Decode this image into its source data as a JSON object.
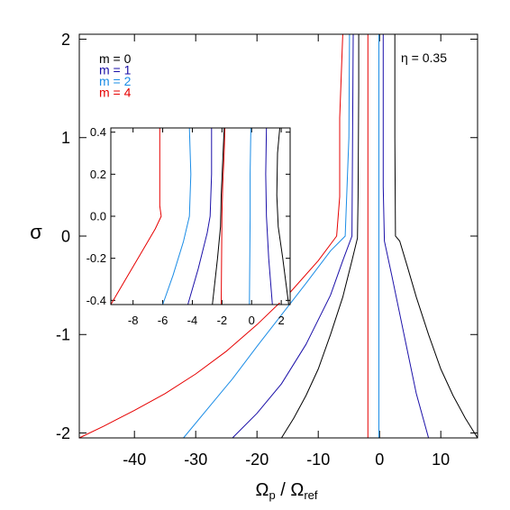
{
  "chart_data": {
    "type": "line",
    "annotation": "η = 0.35",
    "xlabel": {
      "main": "Ω",
      "sub1": "p",
      "sep": " / Ω",
      "sub2": "ref"
    },
    "ylabel": "σ",
    "xlim": [
      -49,
      16
    ],
    "ylim": [
      -2.05,
      2.05
    ],
    "xticks": [
      -40,
      -30,
      -20,
      -10,
      0,
      10
    ],
    "yticks": [
      -2,
      -1,
      0,
      1,
      2
    ],
    "legend": [
      {
        "label": "m = 0",
        "color": "#000000"
      },
      {
        "label": "m = 1",
        "color": "#1a0fa8"
      },
      {
        "label": "m = 2",
        "color": "#1a8ce6"
      },
      {
        "label": "m = 4",
        "color": "#e60000"
      }
    ],
    "series": [
      {
        "label": "m = 0",
        "color": "#000000",
        "branches": [
          {
            "x": [
              -16,
              -14,
              -12,
              -10,
              -8,
              -6,
              -4.5,
              -3.6,
              -3.5,
              -3.4,
              -3.4
            ],
            "y": [
              -2.05,
              -1.85,
              -1.62,
              -1.35,
              -1.0,
              -0.62,
              -0.25,
              -0.02,
              0.4,
              1.5,
              2.05
            ]
          },
          {
            "x": [
              16,
              14,
              12,
              10,
              8,
              6,
              4.5,
              3.3,
              2.6,
              2.5,
              2.5
            ],
            "y": [
              -2.05,
              -1.85,
              -1.62,
              -1.35,
              -1.0,
              -0.62,
              -0.3,
              -0.05,
              0.0,
              1.0,
              2.05
            ]
          }
        ]
      },
      {
        "label": "m = 1",
        "color": "#1a0fa8",
        "branches": [
          {
            "x": [
              -24,
              -20,
              -16,
              -12,
              -8,
              -6,
              -4.5,
              -4.4,
              -4.3
            ],
            "y": [
              -2.05,
              -1.8,
              -1.5,
              -1.1,
              -0.6,
              -0.25,
              0.0,
              1.0,
              2.05
            ]
          },
          {
            "x": [
              8,
              6,
              4,
              2,
              0.8,
              0.6,
              0.6
            ],
            "y": [
              -2.05,
              -1.6,
              -1.0,
              -0.4,
              -0.05,
              0.5,
              2.05
            ]
          }
        ]
      },
      {
        "label": "m = 2",
        "color": "#1a8ce6",
        "branches": [
          {
            "x": [
              -32,
              -28,
              -24,
              -20,
              -16,
              -12,
              -8,
              -5.6,
              -5.0,
              -4.9
            ],
            "y": [
              -2.05,
              -1.75,
              -1.45,
              -1.12,
              -0.8,
              -0.48,
              -0.15,
              0.0,
              1.0,
              2.05
            ]
          },
          {
            "x": [
              -0.1,
              -0.1,
              -0.1
            ],
            "y": [
              -2.05,
              0.0,
              2.05
            ]
          }
        ]
      },
      {
        "label": "m = 4",
        "color": "#e60000",
        "branches": [
          {
            "x": [
              -49,
              -45,
              -40,
              -35,
              -30,
              -25,
              -20,
              -15,
              -10,
              -7,
              -6.5,
              -6.5,
              -6.0
            ],
            "y": [
              -2.05,
              -1.93,
              -1.77,
              -1.6,
              -1.4,
              -1.17,
              -0.9,
              -0.6,
              -0.25,
              0.0,
              0.4,
              1.2,
              2.05
            ]
          },
          {
            "x": [
              -1.9,
              -1.9,
              -1.9
            ],
            "y": [
              -2.05,
              0.0,
              2.05
            ]
          }
        ]
      }
    ],
    "inset": {
      "xlim": [
        -9.5,
        2.6
      ],
      "ylim": [
        -0.42,
        0.42
      ],
      "xticks": [
        -8,
        -6,
        -4,
        -2,
        0,
        2
      ],
      "yticks": [
        -0.4,
        -0.2,
        0.0,
        0.2,
        0.4
      ],
      "ytick_labels": [
        "-0.4",
        "-0.2",
        "0.0",
        "0.2",
        "0.4"
      ],
      "series": [
        {
          "color": "#e60000",
          "branches": [
            {
              "x": [
                -9.5,
                -8.5,
                -7.5,
                -6.5,
                -6.1,
                -6.2,
                -6.2
              ],
              "y": [
                -0.42,
                -0.3,
                -0.18,
                -0.06,
                0.0,
                0.05,
                0.42
              ]
            },
            {
              "x": [
                -2.05,
                -2.0,
                -1.95,
                -1.85,
                -1.8
              ],
              "y": [
                -0.42,
                0.0,
                0.15,
                0.3,
                0.42
              ]
            }
          ]
        },
        {
          "color": "#1a8ce6",
          "branches": [
            {
              "x": [
                -6.0,
                -5.3,
                -4.6,
                -4.2,
                -4.1,
                -4.2
              ],
              "y": [
                -0.42,
                -0.28,
                -0.12,
                0.0,
                0.2,
                0.42
              ]
            },
            {
              "x": [
                -0.15,
                -0.1,
                -0.1,
                -0.05
              ],
              "y": [
                -0.42,
                0.0,
                0.2,
                0.42
              ]
            }
          ]
        },
        {
          "color": "#1a0fa8",
          "branches": [
            {
              "x": [
                -4.3,
                -3.6,
                -3.0,
                -2.8,
                -2.7,
                -2.7
              ],
              "y": [
                -0.42,
                -0.25,
                -0.08,
                0.0,
                0.2,
                0.42
              ]
            },
            {
              "x": [
                1.4,
                1.15,
                1.0,
                0.95,
                1.0
              ],
              "y": [
                -0.42,
                -0.2,
                0.0,
                0.2,
                0.42
              ]
            }
          ]
        },
        {
          "color": "#000000",
          "branches": [
            {
              "x": [
                -2.65,
                -2.3,
                -2.1,
                -2.05,
                -1.85
              ],
              "y": [
                -0.42,
                -0.2,
                -0.05,
                0.1,
                0.42
              ]
            },
            {
              "x": [
                2.5,
                2.1,
                1.8,
                1.7,
                1.75,
                1.9
              ],
              "y": [
                -0.42,
                -0.2,
                -0.05,
                0.1,
                0.3,
                0.42
              ]
            }
          ]
        }
      ]
    }
  }
}
